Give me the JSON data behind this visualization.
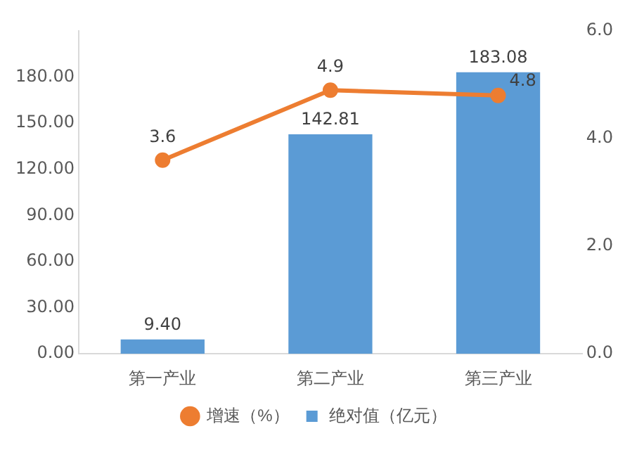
{
  "chart_data": {
    "type": "bar",
    "categories": [
      "第一产业",
      "第二产业",
      "第三产业"
    ],
    "series": [
      {
        "name": "绝对值（亿元）",
        "type": "bar",
        "color": "#5b9bd5",
        "values": [
          9.4,
          142.81,
          183.08
        ],
        "value_labels": [
          "9.40",
          "142.81",
          "183.08"
        ]
      },
      {
        "name": "增速（%）",
        "type": "line",
        "axis": "y2",
        "color": "#ed7d31",
        "values": [
          3.6,
          4.9,
          4.8
        ],
        "value_labels": [
          "3.6",
          "4.9",
          "4.8"
        ]
      }
    ],
    "ylim": [
      0,
      210
    ],
    "yticks": [
      {
        "value": 0,
        "label": "0.00"
      },
      {
        "value": 30,
        "label": "30.00"
      },
      {
        "value": 60,
        "label": "60.00"
      },
      {
        "value": 90,
        "label": "90.00"
      },
      {
        "value": 120,
        "label": "120.00"
      },
      {
        "value": 150,
        "label": "150.00"
      },
      {
        "value": 180,
        "label": "180.00"
      }
    ],
    "y2lim": [
      0,
      6
    ],
    "y2ticks": [
      {
        "value": 0,
        "label": "0.0"
      },
      {
        "value": 2,
        "label": "2.0"
      },
      {
        "value": 4,
        "label": "4.0"
      },
      {
        "value": 6,
        "label": "6.0"
      }
    ],
    "grid": false,
    "legend": "bottom",
    "marker": "circle",
    "line_style": "solid"
  }
}
